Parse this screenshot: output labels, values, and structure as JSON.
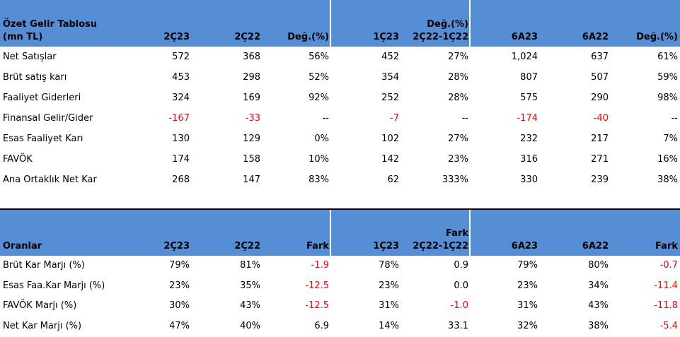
{
  "tables": [
    {
      "title_lines": [
        "Özet Gelir Tablosu",
        "(mn TL)"
      ],
      "columns": [
        [
          "2Ç23"
        ],
        [
          "2Ç22"
        ],
        [
          "Değ.(%)"
        ],
        [
          "1Ç23"
        ],
        [
          "Değ.(%)",
          "2Ç22-1Ç22"
        ],
        [
          "6A23"
        ],
        [
          "6A22"
        ],
        [
          "Değ.(%)"
        ]
      ],
      "rows": [
        {
          "label": "Net Satışlar",
          "cells": [
            "572",
            "368",
            "56%",
            "452",
            "27%",
            "1,024",
            "637",
            "61%"
          ]
        },
        {
          "label": "Brüt satış karı",
          "cells": [
            "453",
            "298",
            "52%",
            "354",
            "28%",
            "807",
            "507",
            "59%"
          ]
        },
        {
          "label": "Faaliyet Giderleri",
          "cells": [
            "324",
            "169",
            "92%",
            "252",
            "28%",
            "575",
            "290",
            "98%"
          ]
        },
        {
          "label": "Finansal Gelir/Gider",
          "cells": [
            "-167",
            "-33",
            "--",
            "-7",
            "--",
            "-174",
            "-40",
            "--"
          ]
        },
        {
          "label": "Esas Faaliyet Karı",
          "cells": [
            "130",
            "129",
            "0%",
            "102",
            "27%",
            "232",
            "217",
            "7%"
          ]
        },
        {
          "label": "FAVÖK",
          "cells": [
            "174",
            "158",
            "10%",
            "142",
            "23%",
            "316",
            "271",
            "16%"
          ]
        },
        {
          "label": "Ana Ortaklık Net Kar",
          "cells": [
            "268",
            "147",
            "83%",
            "62",
            "333%",
            "330",
            "239",
            "38%"
          ]
        }
      ]
    },
    {
      "title_lines": [
        "Oranlar"
      ],
      "columns": [
        [
          "2Ç23"
        ],
        [
          "2Ç22"
        ],
        [
          "Fark"
        ],
        [
          "1Ç23"
        ],
        [
          "Fark",
          "2Ç22-1Ç22"
        ],
        [
          "6A23"
        ],
        [
          "6A22"
        ],
        [
          "Fark"
        ]
      ],
      "rows": [
        {
          "label": "Brüt Kar Marjı (%)",
          "cells": [
            "79%",
            "81%",
            "-1.9",
            "78%",
            "0.9",
            "79%",
            "80%",
            "-0.7"
          ]
        },
        {
          "label": "Esas Faa.Kar Marjı (%)",
          "cells": [
            "23%",
            "35%",
            "-12.5",
            "23%",
            "0.0",
            "23%",
            "34%",
            "-11.4"
          ]
        },
        {
          "label": "FAVÖK Marjı (%)",
          "cells": [
            "30%",
            "43%",
            "-12.5",
            "31%",
            "-1.0",
            "31%",
            "43%",
            "-11.8"
          ]
        },
        {
          "label": "Net Kar Marjı (%)",
          "cells": [
            "47%",
            "40%",
            "6.9",
            "14%",
            "33.1",
            "32%",
            "38%",
            "-5.4"
          ]
        }
      ]
    }
  ]
}
